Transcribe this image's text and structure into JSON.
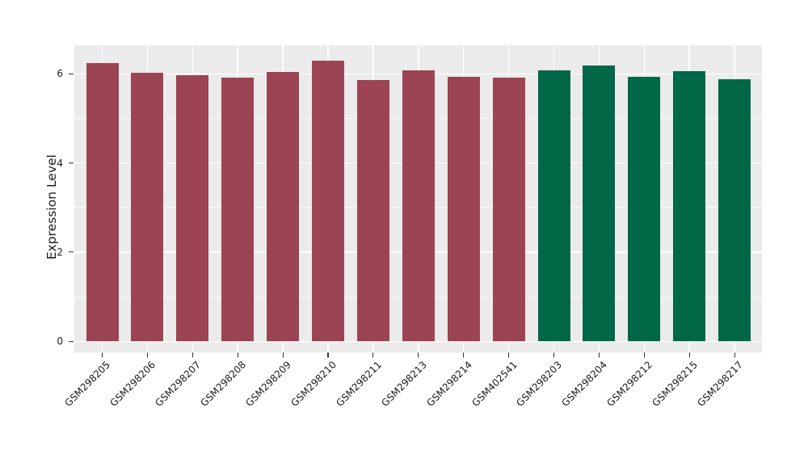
{
  "chart_data": {
    "type": "bar",
    "title": "",
    "xlabel": "",
    "ylabel": "Expression Level",
    "categories": [
      "GSM298205",
      "GSM298206",
      "GSM298207",
      "GSM298208",
      "GSM298209",
      "GSM298210",
      "GSM298211",
      "GSM298213",
      "GSM298214",
      "GSM402541",
      "GSM298203",
      "GSM298204",
      "GSM298212",
      "GSM298215",
      "GSM298217"
    ],
    "values": [
      6.24,
      6.02,
      5.97,
      5.92,
      6.05,
      6.3,
      5.87,
      6.08,
      5.93,
      5.91,
      6.08,
      6.18,
      5.93,
      6.06,
      5.88
    ],
    "bar_groups": [
      "maroon",
      "maroon",
      "maroon",
      "maroon",
      "maroon",
      "maroon",
      "maroon",
      "maroon",
      "maroon",
      "maroon",
      "green",
      "green",
      "green",
      "green",
      "green"
    ],
    "palette": {
      "maroon": "#9C4453",
      "green": "#006747"
    },
    "yticks_major": [
      0,
      2,
      4,
      6
    ],
    "yticks_minor": [
      1,
      3,
      5
    ],
    "ylim": [
      -0.25,
      6.64
    ],
    "grid": "on",
    "legend_position": "none",
    "panel_bg": "#EBEBEB",
    "grid_color": "#FFFFFF",
    "tick_color": "#333333",
    "text_color": "#1A1A1A"
  }
}
